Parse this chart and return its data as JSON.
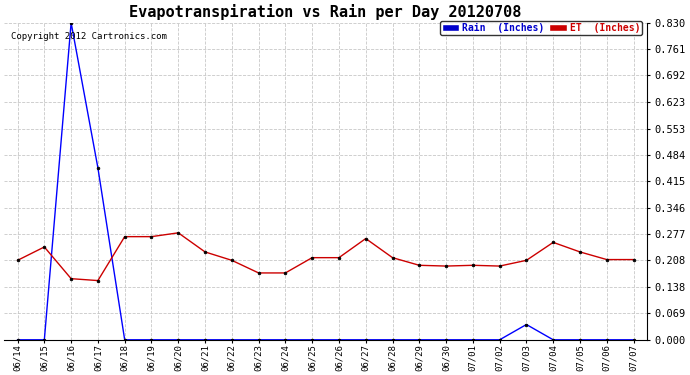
{
  "title": "Evapotranspiration vs Rain per Day 20120708",
  "copyright": "Copyright 2012 Cartronics.com",
  "x_labels": [
    "06/14",
    "06/15",
    "06/16",
    "06/17",
    "06/18",
    "06/19",
    "06/20",
    "06/21",
    "06/22",
    "06/23",
    "06/24",
    "06/25",
    "06/26",
    "06/27",
    "06/28",
    "06/29",
    "06/30",
    "07/01",
    "07/02",
    "07/03",
    "07/04",
    "07/05",
    "07/06",
    "07/07"
  ],
  "rain_data": [
    0.0,
    0.0,
    0.83,
    0.45,
    0.0,
    0.0,
    0.0,
    0.0,
    0.0,
    0.0,
    0.0,
    0.0,
    0.0,
    0.0,
    0.0,
    0.0,
    0.0,
    0.0,
    0.0,
    0.04,
    0.0,
    0.0,
    0.0,
    0.0
  ],
  "et_data": [
    0.208,
    0.243,
    0.16,
    0.155,
    0.27,
    0.27,
    0.28,
    0.23,
    0.208,
    0.175,
    0.175,
    0.215,
    0.215,
    0.265,
    0.215,
    0.195,
    0.193,
    0.195,
    0.193,
    0.208,
    0.255,
    0.23,
    0.21,
    0.21
  ],
  "rain_color": "#0000ff",
  "et_color": "#cc0000",
  "background_color": "#ffffff",
  "grid_color": "#c8c8c8",
  "y_ticks": [
    0.0,
    0.069,
    0.138,
    0.208,
    0.277,
    0.346,
    0.415,
    0.484,
    0.553,
    0.623,
    0.692,
    0.761,
    0.83
  ],
  "ylim": [
    0.0,
    0.83
  ],
  "title_fontsize": 11,
  "legend_rain_label": "Rain  (Inches)",
  "legend_et_label": "ET  (Inches)",
  "legend_rain_bg": "#0000cc",
  "legend_et_bg": "#cc0000"
}
